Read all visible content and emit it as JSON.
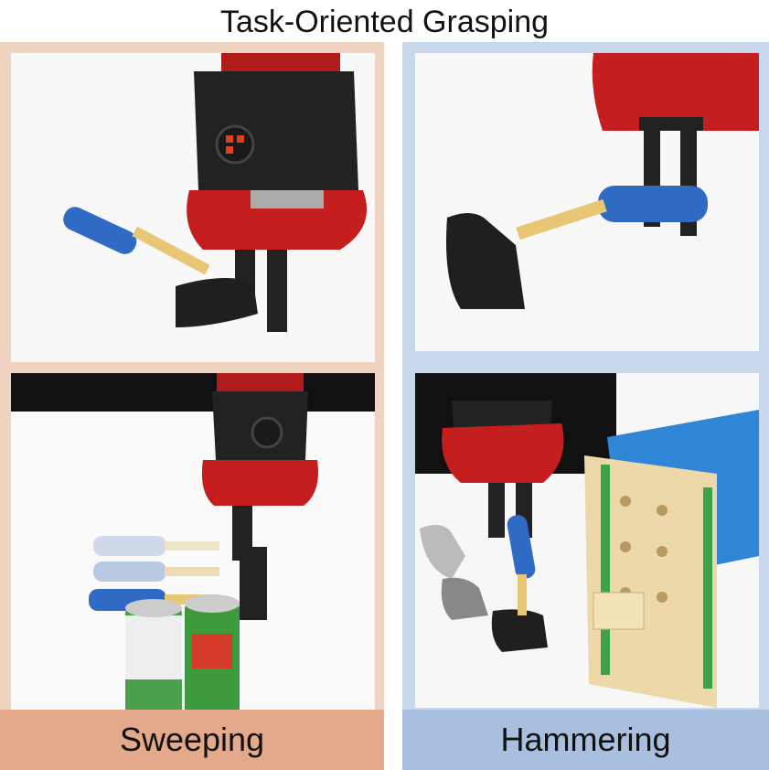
{
  "title": "Task-Oriented Grasping",
  "panels": [
    {
      "label": "Sweeping",
      "accent": "#e3a98a",
      "background": "#f1d3c2"
    },
    {
      "label": "Hammering",
      "accent": "#a9bfe0",
      "background": "#c8d6ec"
    }
  ]
}
